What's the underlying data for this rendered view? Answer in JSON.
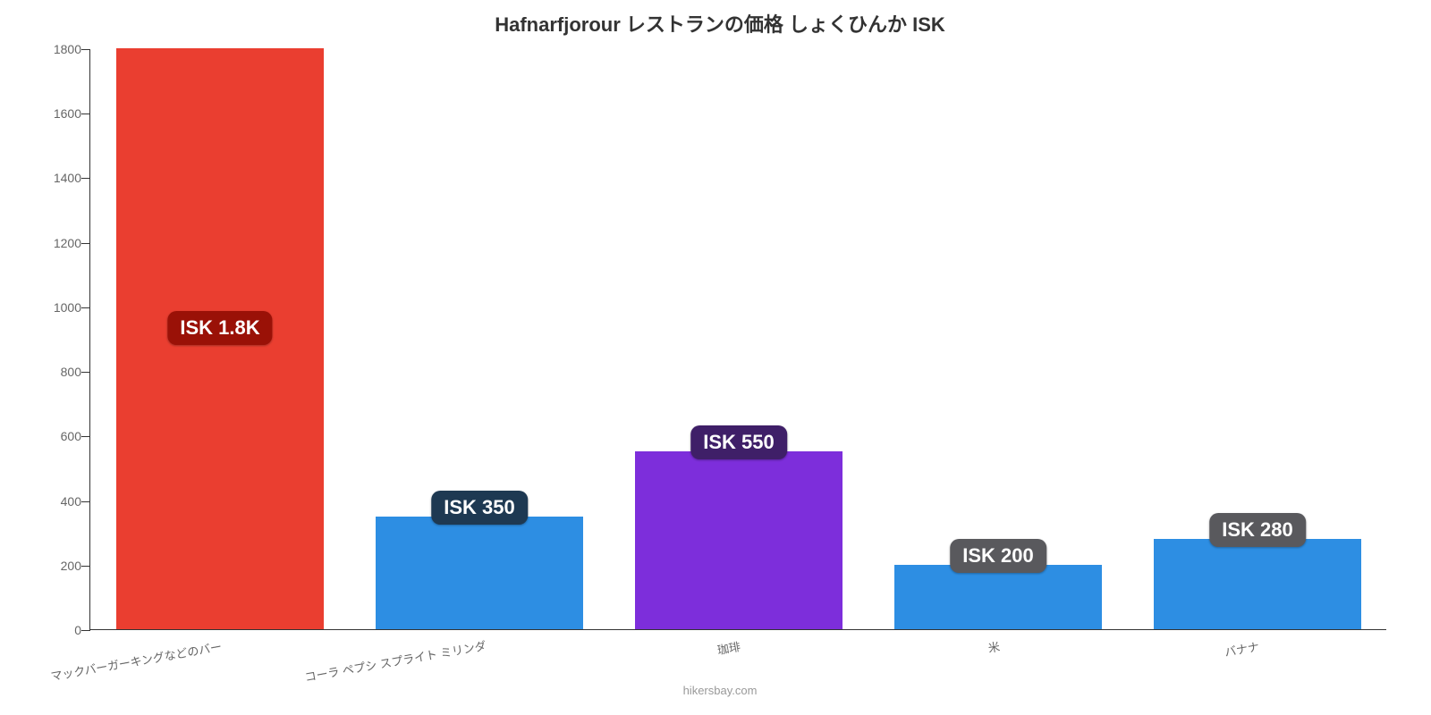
{
  "chart": {
    "type": "bar",
    "title": "Hafnarfjorour レストランの価格 しょくひんか ISK",
    "title_fontsize": 22,
    "title_fontweight": 700,
    "title_color": "#333333",
    "background_color": "#ffffff",
    "axis_color": "#333333",
    "ylim": [
      0,
      1800
    ],
    "yticks": [
      0,
      200,
      400,
      600,
      800,
      1000,
      1200,
      1400,
      1600,
      1800
    ],
    "ytick_fontsize": 14,
    "ytick_color": "#666666",
    "xtick_fontsize": 13,
    "xtick_color": "#666666",
    "xtick_rotation": -10,
    "bar_width_ratio": 0.8,
    "datalabel_fontsize": 22,
    "datalabel_color": "#ffffff",
    "source_label": "hikersbay.com",
    "categories": [
      {
        "label": "マックバーガーキングなどのバー",
        "value": 1800,
        "value_label": "ISK 1.8K",
        "bar_color": "#ea3e30",
        "label_bg": "#9a1107"
      },
      {
        "label": "コーラ ペプシ スプライト ミリンダ",
        "value": 350,
        "value_label": "ISK 350",
        "bar_color": "#2d8ee3",
        "label_bg": "#1e3952"
      },
      {
        "label": "珈琲",
        "value": 550,
        "value_label": "ISK 550",
        "bar_color": "#7d2edb",
        "label_bg": "#3f1f68"
      },
      {
        "label": "米",
        "value": 200,
        "value_label": "ISK 200",
        "bar_color": "#2d8ee3",
        "label_bg": "#59595d"
      },
      {
        "label": "バナナ",
        "value": 280,
        "value_label": "ISK 280",
        "bar_color": "#2d8ee3",
        "label_bg": "#59595d"
      }
    ]
  }
}
